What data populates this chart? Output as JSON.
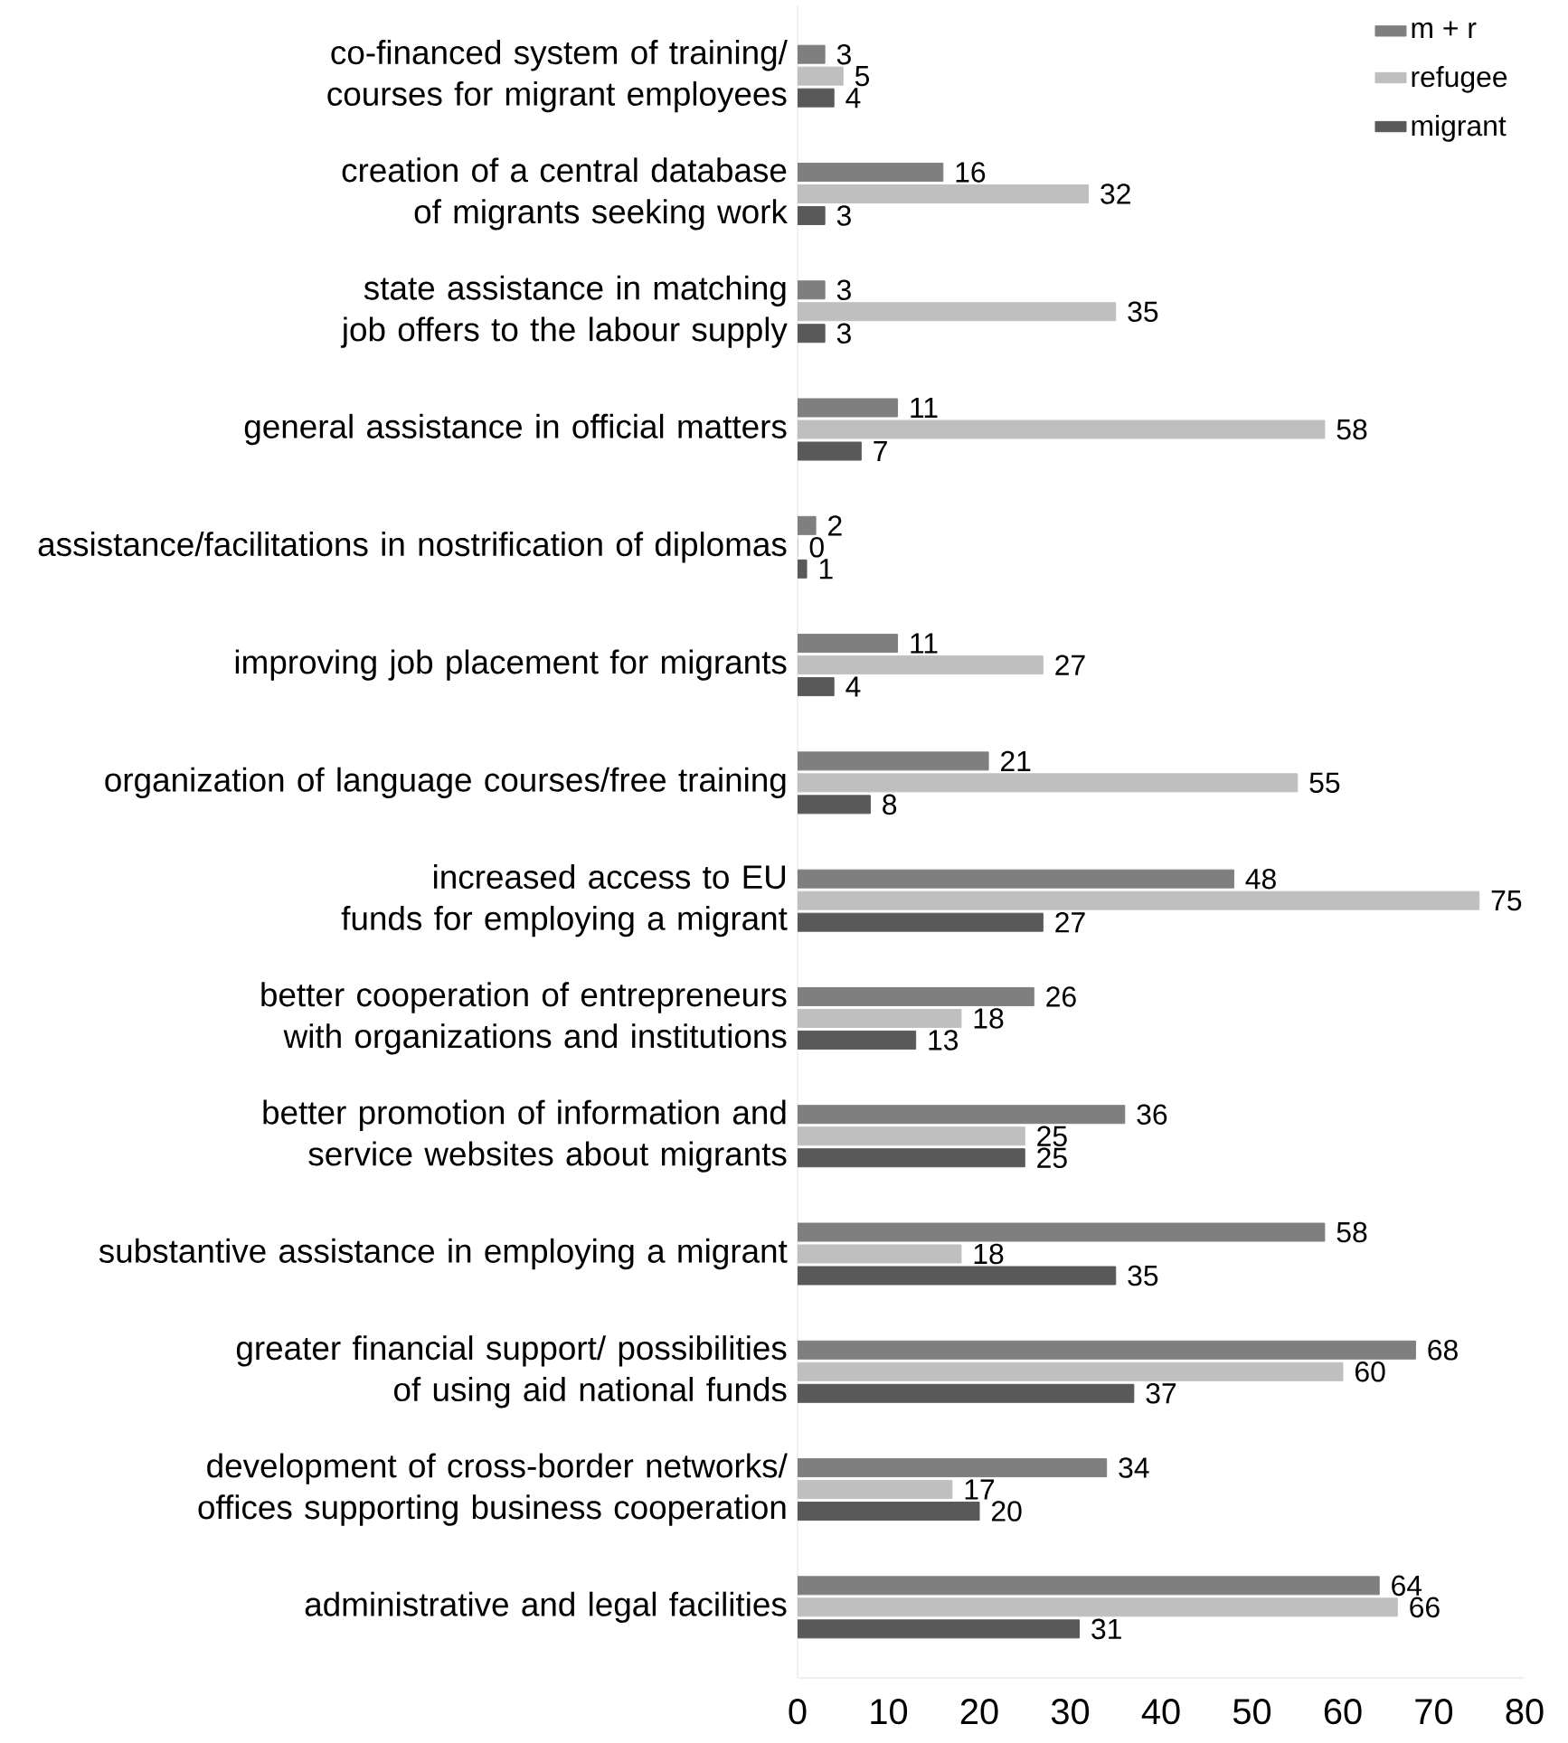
{
  "chart_data": {
    "type": "bar",
    "orientation": "horizontal",
    "data_labels": true,
    "legend": "top right",
    "grid": false,
    "categories": [
      "co-financed system of training/ courses for migrant employees",
      "creation of a central database of migrants seeking work",
      "state assistance in matching job offers to the labour supply",
      "general assistance in official matters",
      "assistance/facilitations in nostrification of diplomas",
      "improving job placement for migrants",
      "organization of language courses/free training",
      "increased access to EU funds for employing a migrant",
      "better cooperation of entrepreneurs with organizations and institutions",
      "better promotion of information and service websites about migrants",
      "substantive assistance in employing a migrant",
      "greater financial support/ possibilities of using aid national funds",
      "development of cross-border networks/ offices supporting business cooperation",
      "administrative and legal facilities"
    ],
    "series": [
      {
        "name": "m + r",
        "color": "#7f7f7f",
        "values": [
          3,
          16,
          3,
          11,
          2,
          11,
          21,
          48,
          26,
          36,
          58,
          68,
          34,
          64
        ]
      },
      {
        "name": "refugee",
        "color": "#bfbfbf",
        "values": [
          5,
          32,
          35,
          58,
          0,
          27,
          55,
          75,
          18,
          25,
          18,
          60,
          17,
          66
        ]
      },
      {
        "name": "migrant",
        "color": "#595959",
        "values": [
          4,
          3,
          3,
          7,
          1,
          4,
          8,
          27,
          13,
          25,
          35,
          37,
          20,
          31
        ]
      }
    ],
    "xlim": [
      0,
      80
    ],
    "xticks": [
      0,
      10,
      20,
      30,
      40,
      50,
      60,
      70,
      80
    ]
  }
}
